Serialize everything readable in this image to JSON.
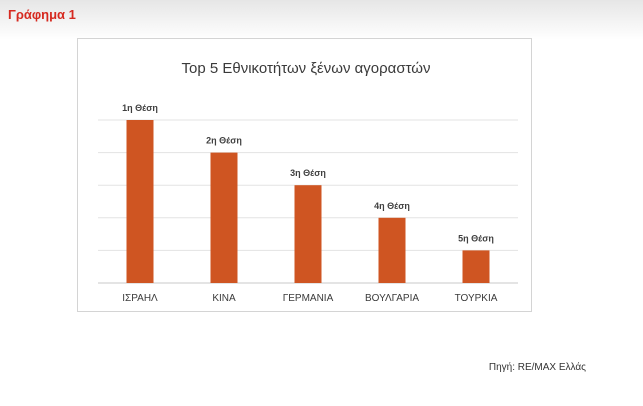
{
  "figure_label": "Γράφημα 1",
  "source": "Πηγή: RE/MAX Ελλάς",
  "chart_data": {
    "type": "bar",
    "title": "Top 5 Εθνικοτήτων ξένων αγοραστών",
    "categories": [
      "ΙΣΡΑΗΛ",
      "ΚΙΝΑ",
      "ΓΕΡΜΑΝΙΑ",
      "ΒΟΥΛΓΑΡΙΑ",
      "ΤΟΥΡΚΙΑ"
    ],
    "values": [
      5,
      4,
      3,
      2,
      1
    ],
    "data_labels": [
      "1η Θέση",
      "2η Θέση",
      "3η Θέση",
      "4η Θέση",
      "5η Θέση"
    ],
    "ylim": [
      0,
      5
    ],
    "grid": true,
    "bar_color": "#cf5522"
  }
}
